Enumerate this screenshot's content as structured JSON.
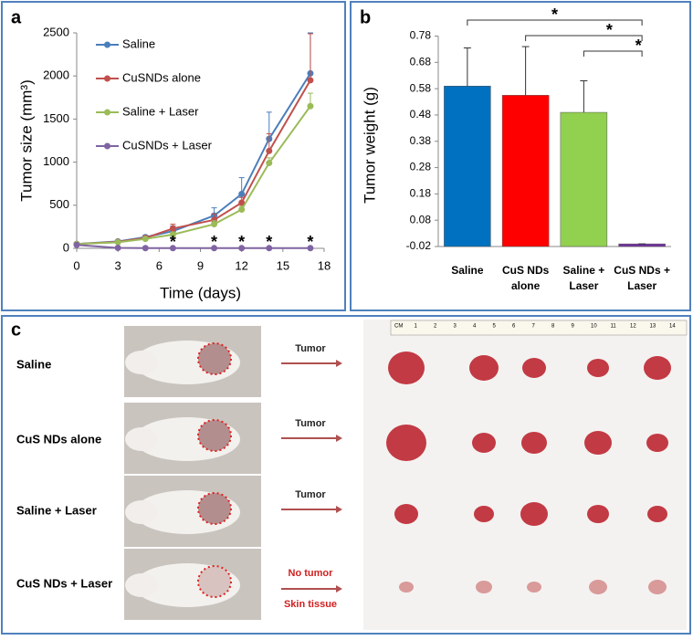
{
  "chart_data": [
    {
      "type": "line",
      "panel_label": "a",
      "x_label": "Time (days)",
      "y_label": "Tumor size (mm³)",
      "x": [
        0,
        3,
        5,
        7,
        10,
        12,
        14,
        17
      ],
      "xlim": [
        0,
        18
      ],
      "xticks": [
        0,
        3,
        6,
        9,
        12,
        15,
        18
      ],
      "ylim": [
        0,
        2500
      ],
      "yticks": [
        0,
        500,
        1000,
        1500,
        2000,
        2500
      ],
      "series": [
        {
          "name": "Saline",
          "color": "#4a7ebb",
          "values": [
            50,
            80,
            130,
            200,
            380,
            630,
            1270,
            2030
          ],
          "errors": [
            10,
            15,
            20,
            60,
            90,
            190,
            310,
            470
          ]
        },
        {
          "name": "CuSNDs alone",
          "color": "#c0504d",
          "values": [
            50,
            75,
            120,
            230,
            330,
            530,
            1130,
            1950
          ],
          "errors": [
            10,
            15,
            20,
            50,
            70,
            60,
            200,
            540
          ]
        },
        {
          "name": "Saline + Laser",
          "color": "#9bbb59",
          "values": [
            50,
            70,
            110,
            160,
            280,
            450,
            990,
            1650
          ],
          "errors": [
            10,
            10,
            15,
            30,
            40,
            40,
            60,
            150
          ]
        },
        {
          "name": "CuSNDs + Laser",
          "color": "#8064a2",
          "values": [
            40,
            5,
            3,
            2,
            2,
            2,
            2,
            2
          ],
          "errors": [
            10,
            5,
            3,
            2,
            2,
            2,
            2,
            2
          ]
        }
      ],
      "annotations": [
        {
          "x": 7,
          "label": "*"
        },
        {
          "x": 10,
          "label": "*"
        },
        {
          "x": 12,
          "label": "*"
        },
        {
          "x": 14,
          "label": "*"
        },
        {
          "x": 17,
          "label": "*"
        }
      ]
    },
    {
      "type": "bar",
      "panel_label": "b",
      "y_label": "Tumor weight (g)",
      "categories": [
        [
          "Saline"
        ],
        [
          "CuS NDs",
          "alone"
        ],
        [
          "Saline +",
          "Laser"
        ],
        [
          "CuS NDs +",
          "Laser"
        ]
      ],
      "values": [
        0.59,
        0.555,
        0.49,
        -0.01
      ],
      "errors": [
        0.145,
        0.185,
        0.12,
        0.0
      ],
      "colors": [
        "#0070c0",
        "#ff0000",
        "#92d050",
        "#7030a0"
      ],
      "ylim": [
        -0.02,
        0.82
      ],
      "yticks": [
        -0.02,
        0.08,
        0.18,
        0.28,
        0.38,
        0.48,
        0.58,
        0.68,
        0.78
      ],
      "significance": [
        {
          "from": 0,
          "to": 3,
          "label": "*"
        },
        {
          "from": 1,
          "to": 3,
          "label": "*"
        },
        {
          "from": 2,
          "to": 3,
          "label": "*"
        }
      ]
    }
  ],
  "panel_c": {
    "label": "c",
    "rows": [
      {
        "name": "Saline",
        "arrow_labels": [
          "Tumor"
        ]
      },
      {
        "name": "CuS NDs alone",
        "arrow_labels": [
          "Tumor"
        ]
      },
      {
        "name": "Saline + Laser",
        "arrow_labels": [
          "Tumor"
        ]
      },
      {
        "name": "CuS NDs + Laser",
        "arrow_labels": [
          "No tumor",
          "Skin tissue"
        ]
      }
    ],
    "ruler": [
      "CM",
      "1",
      "2",
      "3",
      "4",
      "5",
      "6",
      "7",
      "8",
      "9",
      "10",
      "11",
      "12",
      "13",
      "14"
    ]
  }
}
